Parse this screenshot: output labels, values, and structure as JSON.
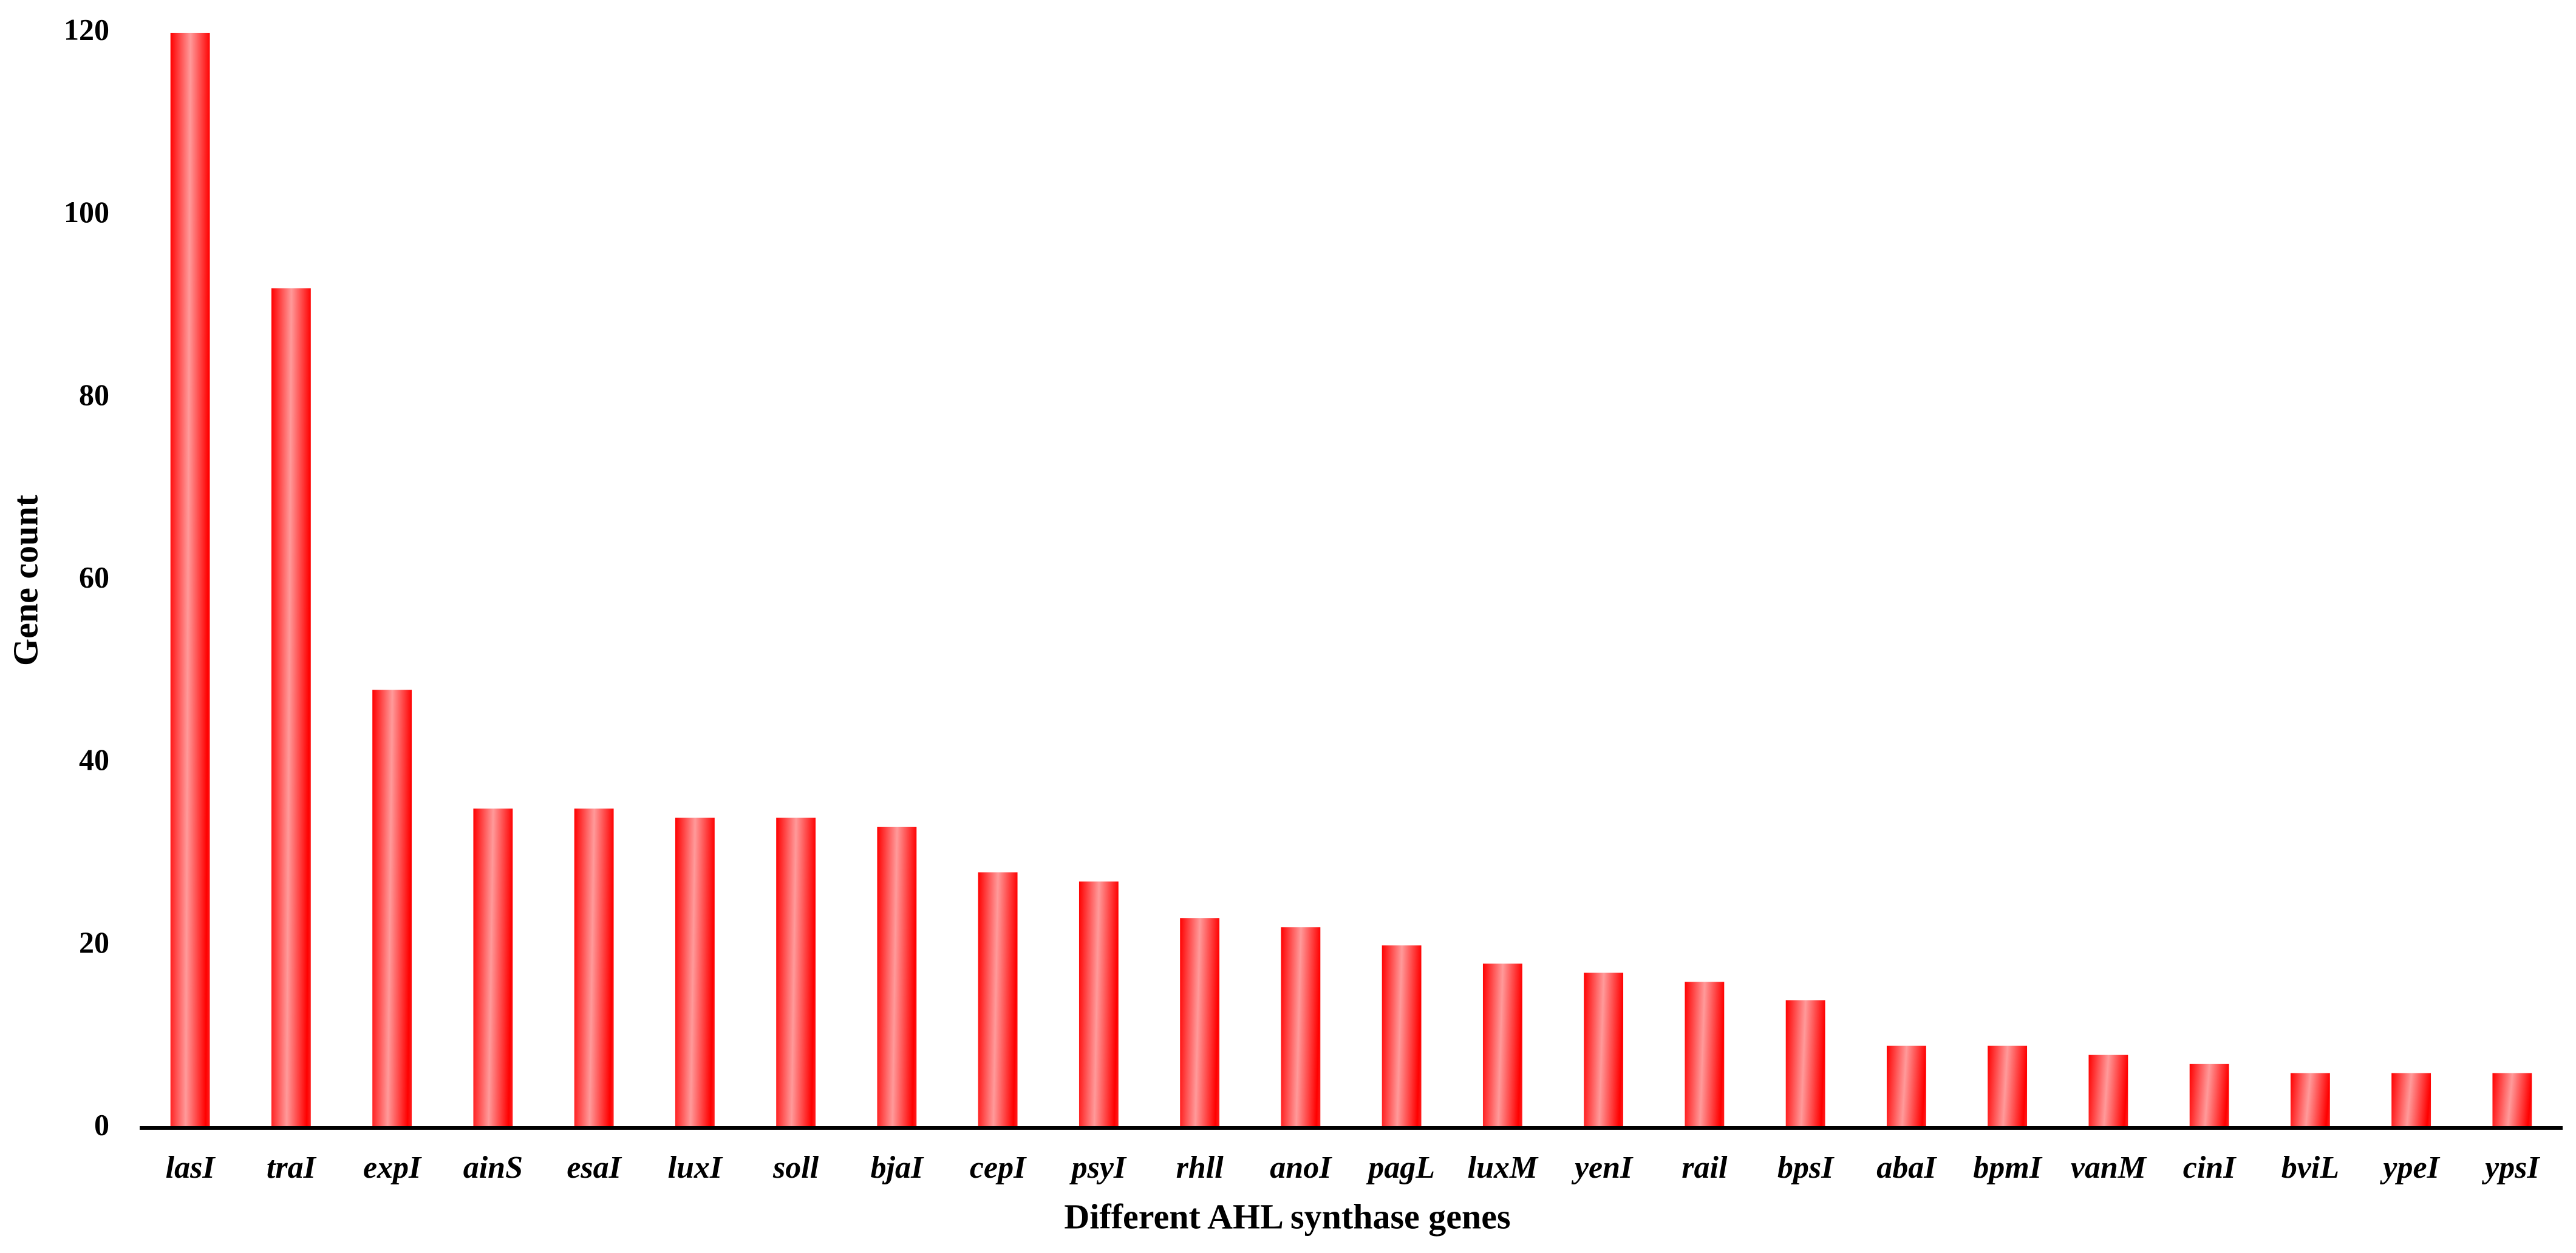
{
  "chart_data": {
    "type": "bar",
    "x_label": "Different AHL synthase genes",
    "y_label": "Gene count",
    "categories": [
      "lasI",
      "traI",
      "expI",
      "ainS",
      "esaI",
      "luxI",
      "soll",
      "bjaI",
      "cepI",
      "psyI",
      "rhll",
      "anoI",
      "pagL",
      "luxM",
      "yenI",
      "rail",
      "bpsI",
      "abaI",
      "bpmI",
      "vanM",
      "cinI",
      "bviL",
      "ypeI",
      "ypsI"
    ],
    "values": [
      120,
      92,
      48,
      35,
      35,
      34,
      34,
      33,
      28,
      27,
      23,
      22,
      20,
      18,
      17,
      16,
      14,
      9,
      9,
      8,
      7,
      6,
      6,
      6
    ],
    "color": "#ff0000",
    "ylim": [
      0,
      120
    ],
    "yticks": [
      0,
      20,
      40,
      60,
      80,
      100,
      120
    ],
    "grid": false
  }
}
